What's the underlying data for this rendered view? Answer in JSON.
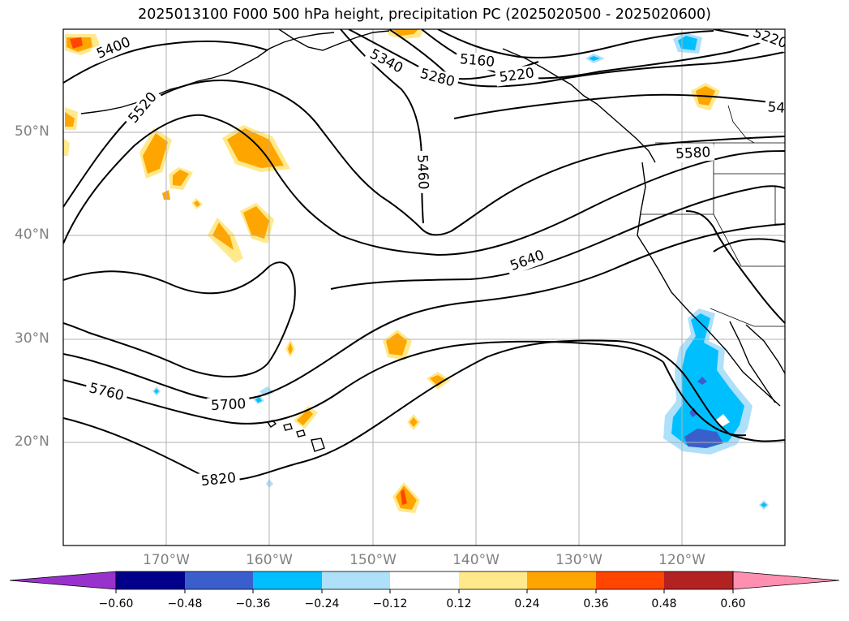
{
  "title": "2025013100 F000 500 hPa height, precipitation PC (2025020500 - 2025020600)",
  "lat_labels": [
    "50°N",
    "40°N",
    "30°N",
    "20°N"
  ],
  "lon_labels": [
    "170°W",
    "160°W",
    "150°W",
    "140°W",
    "130°W",
    "120°W"
  ],
  "contour_labels": [
    "5400",
    "5520",
    "5340",
    "5280",
    "5160",
    "5220",
    "5220",
    "54",
    "5460",
    "5580",
    "5640",
    "5700",
    "5760",
    "5820"
  ],
  "colorbar": {
    "ticks": [
      "−0.60",
      "−0.48",
      "−0.36",
      "−0.24",
      "−0.12",
      "0.12",
      "0.24",
      "0.36",
      "0.48",
      "0.60"
    ],
    "colors": [
      "#9932cc",
      "#00008b",
      "#3a5fcd",
      "#00bfff",
      "#afe0fa",
      "#ffffff",
      "#ffe98a",
      "#ffa500",
      "#ff4500",
      "#b22222",
      "#ff8fb0"
    ]
  }
}
